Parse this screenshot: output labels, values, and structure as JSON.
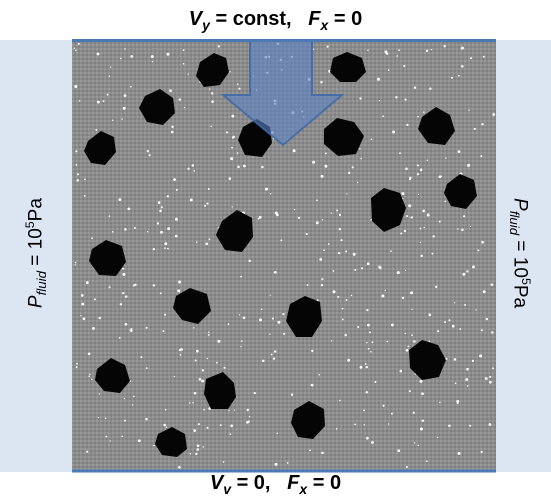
{
  "top_condition": {
    "v": "V",
    "v_sub": "y",
    "v_value": " = const,",
    "f": "F",
    "f_sub": "x",
    "f_value": " = 0"
  },
  "bottom_condition": {
    "v": "V",
    "v_sub": "v",
    "v_value": " = 0,",
    "f": "F",
    "f_sub": "x",
    "f_value": " = 0"
  },
  "left_pressure": {
    "p": "P",
    "p_sub": "fluid",
    "eq": " = 10",
    "exp": "5",
    "unit": "Pa"
  },
  "right_pressure": {
    "p": "P",
    "p_sub": "fluid",
    "eq": " = 10",
    "exp": "5",
    "unit": "Pa"
  },
  "colors": {
    "matrix": "#8c8c8c",
    "grain": "#050505",
    "boundary": "#4a7ab5",
    "fluid_panel": "#dce6f2",
    "arrow": "#5b84c4"
  }
}
